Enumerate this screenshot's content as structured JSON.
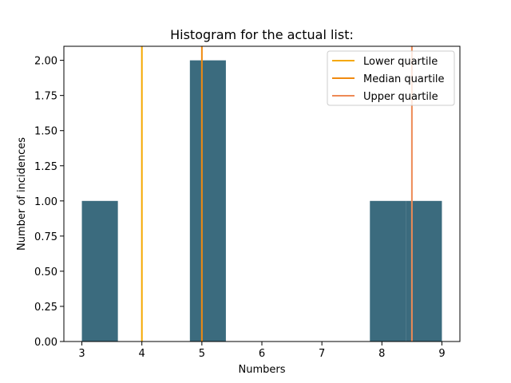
{
  "chart_data": {
    "type": "bar",
    "title": "Histogram for the actual list:",
    "xlabel": "Numbers",
    "ylabel": "Number of incidences",
    "xlim": [
      2.7,
      9.3
    ],
    "ylim": [
      0,
      2.1
    ],
    "x_ticks": [
      "3",
      "4",
      "5",
      "6",
      "7",
      "8",
      "9"
    ],
    "y_ticks": [
      "0.00",
      "0.25",
      "0.50",
      "0.75",
      "1.00",
      "1.25",
      "1.50",
      "1.75",
      "2.00"
    ],
    "grid": false,
    "legend_position": "top-right",
    "bar_color": "#3b6b7e",
    "bins": [
      {
        "start": 3.0,
        "end": 3.6,
        "value": 1
      },
      {
        "start": 3.6,
        "end": 4.2,
        "value": 0
      },
      {
        "start": 4.2,
        "end": 4.8,
        "value": 0
      },
      {
        "start": 4.8,
        "end": 5.4,
        "value": 2
      },
      {
        "start": 5.4,
        "end": 6.0,
        "value": 0
      },
      {
        "start": 6.0,
        "end": 6.6,
        "value": 0
      },
      {
        "start": 6.6,
        "end": 7.2,
        "value": 0
      },
      {
        "start": 7.2,
        "end": 7.8,
        "value": 0
      },
      {
        "start": 7.8,
        "end": 8.4,
        "value": 1
      },
      {
        "start": 8.4,
        "end": 9.0,
        "value": 1
      }
    ],
    "reference_lines": [
      {
        "name": "Lower quartile",
        "x": 4,
        "color": "#f5a800"
      },
      {
        "name": "Median quartile",
        "x": 5,
        "color": "#f08a10"
      },
      {
        "name": "Upper quartile",
        "x": 8.5,
        "color": "#ee8a55"
      }
    ]
  }
}
